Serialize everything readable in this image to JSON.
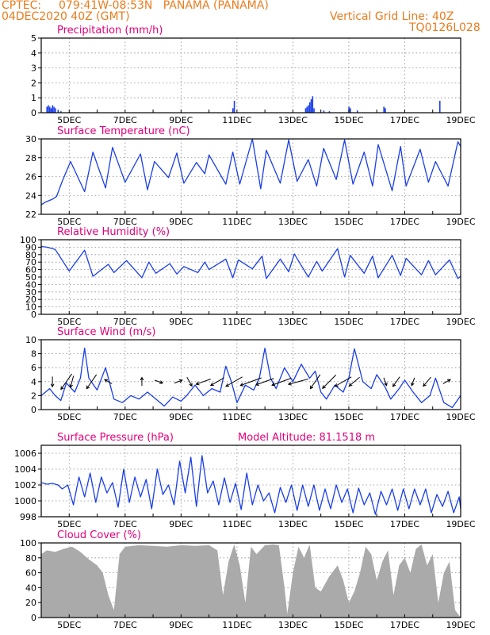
{
  "header": {
    "source": "CPTEC:",
    "location": "079:41W-08:53N   PANAMA (PANAMA)",
    "datetime": "04DEC2020 40Z (GMT)",
    "grid_note": "Vertical Grid Line: 40Z",
    "code": "TQ0126L028"
  },
  "colors": {
    "header": "#e87c1e",
    "title": "#e0007a",
    "series": "#1a3ee8",
    "cloud": "#aaaaaa",
    "grid": "#8c8c8c"
  },
  "chart_data": [
    {
      "type": "bar",
      "title": "Precipitation (mm/h)",
      "ylim": [
        0,
        5
      ],
      "yticks": [
        "0",
        "1",
        "2",
        "3",
        "4",
        "5"
      ],
      "xticks": [
        "5DEC",
        "7DEC",
        "9DEC",
        "11DEC",
        "13DEC",
        "15DEC",
        "17DEC",
        "19DEC"
      ],
      "x": [
        4.2,
        4.25,
        4.3,
        4.35,
        4.4,
        4.45,
        4.5,
        4.6,
        4.7,
        5.0,
        10.85,
        10.9,
        13.45,
        13.5,
        13.55,
        13.6,
        13.65,
        13.7,
        13.75,
        14.1,
        14.3,
        15.0,
        15.05,
        15.3,
        16.25,
        16.3,
        18.25
      ],
      "values": [
        0.4,
        0.5,
        0.4,
        0.3,
        0.5,
        0.4,
        0.3,
        0.2,
        0.1,
        0.05,
        0.3,
        0.8,
        0.3,
        0.4,
        0.5,
        0.7,
        0.9,
        1.1,
        0.3,
        0.15,
        0.1,
        0.4,
        0.3,
        0.15,
        0.4,
        0.3,
        0.8
      ]
    },
    {
      "type": "line",
      "title": "Surface Temperature (nC)",
      "ylim": [
        22,
        30
      ],
      "yticks": [
        "22",
        "24",
        "26",
        "28",
        "30"
      ],
      "xticks": [
        "5DEC",
        "7DEC",
        "9DEC",
        "11DEC",
        "13DEC",
        "15DEC",
        "17DEC",
        "19DEC"
      ],
      "series": [
        {
          "x": [
            4.0,
            4.15,
            4.4,
            4.55,
            4.75,
            5.05,
            5.55,
            5.85,
            6.3,
            6.55,
            7.0,
            7.55,
            7.8,
            8.05,
            8.55,
            8.85,
            9.1,
            9.55,
            9.85,
            10.0,
            10.6,
            10.85,
            11.1,
            11.55,
            11.85,
            12.05,
            12.55,
            12.85,
            13.15,
            13.55,
            13.85,
            14.1,
            14.55,
            14.85,
            15.15,
            15.55,
            15.85,
            16.05,
            16.55,
            16.85,
            17.05,
            17.55,
            17.85,
            18.1,
            18.55,
            18.9,
            19.0
          ],
          "values": [
            23.0,
            23.3,
            23.6,
            23.9,
            25.5,
            27.6,
            24.4,
            28.6,
            24.8,
            29.1,
            25.4,
            28.4,
            24.6,
            27.6,
            25.9,
            28.5,
            25.3,
            27.5,
            26.3,
            28.3,
            25.2,
            28.6,
            25.2,
            30.0,
            24.7,
            28.8,
            25.3,
            29.9,
            25.5,
            27.8,
            25.0,
            29.0,
            25.7,
            29.9,
            25.2,
            28.6,
            25.0,
            29.4,
            24.5,
            29.2,
            25.0,
            28.9,
            25.4,
            27.6,
            25.0,
            29.7,
            29.2
          ]
        }
      ]
    },
    {
      "type": "line",
      "title": "Relative Humidity (%)",
      "ylim": [
        0,
        100
      ],
      "yticks": [
        "0",
        "10",
        "20",
        "30",
        "40",
        "50",
        "60",
        "70",
        "80",
        "90",
        "100"
      ],
      "xticks": [
        "5DEC",
        "7DEC",
        "9DEC",
        "11DEC",
        "13DEC",
        "15DEC",
        "17DEC",
        "19DEC"
      ],
      "series": [
        {
          "x": [
            4.0,
            4.2,
            4.5,
            5.0,
            5.55,
            5.85,
            6.4,
            6.6,
            7.05,
            7.6,
            7.85,
            8.1,
            8.6,
            8.85,
            9.1,
            9.6,
            9.85,
            10.0,
            10.6,
            10.85,
            11.05,
            11.55,
            11.9,
            12.05,
            12.55,
            12.85,
            13.05,
            13.55,
            13.85,
            14.05,
            14.6,
            14.85,
            15.05,
            15.55,
            15.85,
            16.05,
            16.55,
            16.85,
            17.05,
            17.6,
            17.85,
            18.1,
            18.6,
            18.9,
            19.0
          ],
          "values": [
            91,
            90,
            87,
            58,
            86,
            51,
            67,
            56,
            72,
            49,
            70,
            55,
            68,
            54,
            64,
            56,
            70,
            60,
            74,
            49,
            73,
            61,
            78,
            48,
            74,
            57,
            81,
            50,
            71,
            58,
            88,
            50,
            79,
            55,
            78,
            49,
            79,
            52,
            75,
            53,
            72,
            53,
            73,
            48,
            51
          ]
        }
      ]
    },
    {
      "type": "line",
      "title": "Surface Wind (m/s)",
      "ylim": [
        0,
        10
      ],
      "yticks": [
        "0",
        "2",
        "4",
        "6",
        "8",
        "10"
      ],
      "xticks": [
        "5DEC",
        "7DEC",
        "9DEC",
        "11DEC",
        "13DEC",
        "15DEC",
        "17DEC",
        "19DEC"
      ],
      "series": [
        {
          "x": [
            4.0,
            4.3,
            4.5,
            4.7,
            4.9,
            5.2,
            5.4,
            5.55,
            5.7,
            6.0,
            6.3,
            6.6,
            6.9,
            7.2,
            7.5,
            7.8,
            8.1,
            8.4,
            8.7,
            9.0,
            9.2,
            9.5,
            9.8,
            10.1,
            10.4,
            10.6,
            10.8,
            11.0,
            11.3,
            11.6,
            11.8,
            12.0,
            12.2,
            12.4,
            12.7,
            13.0,
            13.3,
            13.6,
            13.8,
            14.0,
            14.2,
            14.5,
            14.8,
            15.0,
            15.2,
            15.5,
            15.8,
            16.0,
            16.3,
            16.5,
            16.8,
            17.0,
            17.3,
            17.6,
            17.9,
            18.1,
            18.4,
            18.7,
            19.0
          ],
          "values": [
            2.0,
            3.0,
            2.0,
            1.3,
            3.8,
            2.5,
            4.5,
            8.8,
            4.5,
            2.8,
            6.0,
            1.5,
            1.0,
            2.0,
            1.5,
            2.5,
            1.5,
            0.5,
            1.8,
            1.2,
            2.0,
            3.5,
            2.0,
            3.0,
            2.5,
            6.2,
            4.0,
            1.0,
            3.5,
            2.8,
            4.5,
            8.8,
            4.5,
            3.0,
            6.0,
            4.0,
            6.5,
            4.5,
            5.5,
            2.5,
            1.5,
            3.5,
            2.5,
            4.5,
            8.7,
            4.0,
            3.0,
            5.0,
            3.2,
            1.5,
            3.0,
            4.2,
            2.5,
            1.0,
            2.0,
            4.5,
            1.0,
            0.3,
            2.0
          ]
        }
      ],
      "arrows": [
        {
          "x": 4.4,
          "dir": 180,
          "speed": 4
        },
        {
          "x": 4.9,
          "dir": 215,
          "speed": 9
        },
        {
          "x": 5.1,
          "dir": 195,
          "speed": 5
        },
        {
          "x": 5.8,
          "dir": 215,
          "speed": 8
        },
        {
          "x": 6.4,
          "dir": 300,
          "speed": 3
        },
        {
          "x": 7.6,
          "dir": 0,
          "speed": 3
        },
        {
          "x": 8.2,
          "dir": 110,
          "speed": 3
        },
        {
          "x": 8.9,
          "dir": 70,
          "speed": 3
        },
        {
          "x": 9.3,
          "dir": 150,
          "speed": 4
        },
        {
          "x": 9.8,
          "dir": 250,
          "speed": 7
        },
        {
          "x": 10.3,
          "dir": 240,
          "speed": 7
        },
        {
          "x": 10.9,
          "dir": 240,
          "speed": 9
        },
        {
          "x": 11.5,
          "dir": 250,
          "speed": 11
        },
        {
          "x": 12.0,
          "dir": 250,
          "speed": 9
        },
        {
          "x": 12.6,
          "dir": 250,
          "speed": 10
        },
        {
          "x": 13.2,
          "dir": 255,
          "speed": 10
        },
        {
          "x": 13.8,
          "dir": 215,
          "speed": 8
        },
        {
          "x": 14.3,
          "dir": 225,
          "speed": 9
        },
        {
          "x": 14.8,
          "dir": 240,
          "speed": 9
        },
        {
          "x": 15.2,
          "dir": 230,
          "speed": 6
        },
        {
          "x": 16.3,
          "dir": 160,
          "speed": 3
        },
        {
          "x": 16.7,
          "dir": 215,
          "speed": 5
        },
        {
          "x": 17.3,
          "dir": 200,
          "speed": 3
        },
        {
          "x": 17.8,
          "dir": 220,
          "speed": 5
        },
        {
          "x": 18.5,
          "dir": 60,
          "speed": 3
        }
      ]
    },
    {
      "type": "line",
      "title": "Surface Pressure (hPa)",
      "annotation": "Model Altitude: 81.1518 m",
      "ylim": [
        998,
        1007
      ],
      "yticks": [
        "998",
        "1000",
        "1002",
        "1004",
        "1006"
      ],
      "xticks": [
        "5DEC",
        "7DEC",
        "9DEC",
        "11DEC",
        "13DEC",
        "15DEC",
        "17DEC",
        "19DEC"
      ],
      "series": [
        {
          "x": [
            4.0,
            4.2,
            4.4,
            4.6,
            4.75,
            4.95,
            5.15,
            5.35,
            5.55,
            5.75,
            5.95,
            6.15,
            6.35,
            6.55,
            6.75,
            6.95,
            7.15,
            7.35,
            7.55,
            7.75,
            7.95,
            8.15,
            8.35,
            8.55,
            8.75,
            8.95,
            9.15,
            9.35,
            9.55,
            9.75,
            9.95,
            10.15,
            10.35,
            10.55,
            10.75,
            10.95,
            11.15,
            11.35,
            11.55,
            11.75,
            11.95,
            12.15,
            12.35,
            12.55,
            12.75,
            12.95,
            13.15,
            13.35,
            13.55,
            13.75,
            13.95,
            14.15,
            14.35,
            14.55,
            14.75,
            14.95,
            15.15,
            15.35,
            15.55,
            15.75,
            15.95,
            16.15,
            16.35,
            16.55,
            16.75,
            16.95,
            17.15,
            17.35,
            17.55,
            17.75,
            17.95,
            18.15,
            18.35,
            18.55,
            18.75,
            18.95,
            19.0
          ],
          "values": [
            1002.3,
            1002.1,
            1002.2,
            1002.0,
            1001.5,
            1002.0,
            999.5,
            1003.0,
            1000.5,
            1003.5,
            999.8,
            1003.0,
            1001.0,
            1002.3,
            999.2,
            1004.0,
            999.8,
            1003.0,
            1000.5,
            1002.7,
            999.0,
            1004.0,
            1000.8,
            1002.0,
            999.5,
            1005.0,
            1001.0,
            1005.5,
            999.3,
            1005.7,
            1001.0,
            1002.5,
            999.5,
            1002.9,
            999.8,
            1002.2,
            998.9,
            1003.5,
            999.5,
            1002.0,
            1000.0,
            1001.0,
            998.5,
            1001.7,
            999.8,
            1002.0,
            998.8,
            1002.0,
            999.3,
            1002.0,
            998.8,
            1001.5,
            999.0,
            1002.0,
            999.8,
            1001.5,
            998.5,
            1001.6,
            999.5,
            1001.0,
            998.3,
            1001.2,
            999.5,
            1001.5,
            998.8,
            1001.5,
            999.0,
            1001.5,
            999.5,
            1001.5,
            998.5,
            1000.8,
            999.3,
            1001.2,
            998.5,
            1000.5,
            999.0
          ]
        }
      ]
    },
    {
      "type": "area",
      "title": "Cloud Cover (%)",
      "ylim": [
        0,
        100
      ],
      "yticks": [
        "0",
        "20",
        "40",
        "60",
        "80",
        "100"
      ],
      "xticks": [
        "5DEC",
        "7DEC",
        "9DEC",
        "11DEC",
        "13DEC",
        "15DEC",
        "17DEC",
        "19DEC"
      ],
      "series": [
        {
          "x": [
            4.0,
            4.2,
            4.5,
            4.8,
            5.1,
            5.4,
            5.7,
            6.0,
            6.2,
            6.4,
            6.6,
            6.8,
            7.0,
            7.5,
            8.0,
            8.5,
            9.0,
            9.5,
            10.0,
            10.3,
            10.5,
            10.7,
            10.9,
            11.1,
            11.3,
            11.5,
            11.7,
            12.0,
            12.3,
            12.5,
            12.7,
            12.8,
            13.0,
            13.2,
            13.4,
            13.6,
            13.8,
            14.0,
            14.3,
            14.6,
            14.8,
            15.0,
            15.2,
            15.4,
            15.6,
            15.8,
            16.0,
            16.2,
            16.4,
            16.6,
            16.8,
            17.0,
            17.2,
            17.4,
            17.6,
            17.8,
            18.0,
            18.2,
            18.4,
            18.6,
            18.8,
            19.0
          ],
          "values": [
            85,
            90,
            88,
            92,
            95,
            88,
            78,
            70,
            60,
            30,
            10,
            85,
            95,
            97,
            96,
            95,
            97,
            96,
            97,
            90,
            30,
            75,
            98,
            70,
            20,
            95,
            85,
            97,
            98,
            97,
            40,
            5,
            60,
            95,
            80,
            98,
            40,
            35,
            55,
            70,
            50,
            20,
            35,
            60,
            95,
            85,
            50,
            75,
            90,
            30,
            70,
            80,
            60,
            92,
            98,
            70,
            85,
            20,
            60,
            75,
            10,
            0
          ]
        }
      ]
    }
  ]
}
